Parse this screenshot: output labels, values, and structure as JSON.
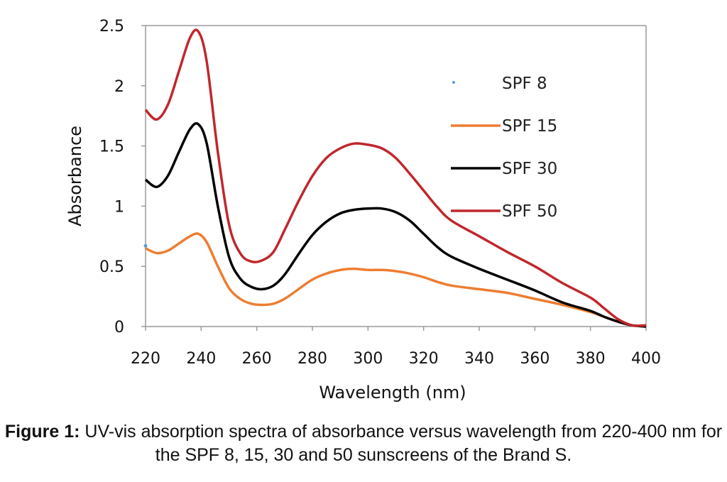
{
  "chart_data": {
    "type": "line",
    "xlabel": "Wavelength (nm)",
    "ylabel": "Absorbance",
    "xlim": [
      220,
      400
    ],
    "ylim": [
      0,
      2.5
    ],
    "x_ticks": [
      "220",
      "240",
      "260",
      "280",
      "300",
      "320",
      "340",
      "360",
      "380",
      "400"
    ],
    "y_ticks": [
      "0",
      "0.5",
      "1",
      "1.5",
      "2",
      "2.5"
    ],
    "legend_position": "top-right",
    "series": [
      {
        "name": "SPF 8",
        "color": "#5b9bd5",
        "style": "marker",
        "x": [
          220
        ],
        "y": [
          0.67
        ]
      },
      {
        "name": "SPF 15",
        "color": "#ed7d31",
        "style": "line",
        "x": [
          220,
          224,
          228,
          232,
          236,
          239,
          242,
          246,
          250,
          254,
          258,
          262,
          266,
          270,
          275,
          280,
          285,
          290,
          295,
          300,
          305,
          310,
          315,
          320,
          325,
          330,
          340,
          350,
          360,
          370,
          380,
          385,
          390,
          395,
          400
        ],
        "y": [
          0.65,
          0.61,
          0.63,
          0.69,
          0.75,
          0.77,
          0.7,
          0.5,
          0.32,
          0.23,
          0.19,
          0.18,
          0.19,
          0.23,
          0.31,
          0.39,
          0.44,
          0.47,
          0.48,
          0.47,
          0.47,
          0.46,
          0.44,
          0.41,
          0.37,
          0.34,
          0.31,
          0.28,
          0.23,
          0.18,
          0.12,
          0.08,
          0.04,
          0.01,
          0.0
        ]
      },
      {
        "name": "SPF 30",
        "color": "#000000",
        "style": "line",
        "x": [
          220,
          224,
          228,
          232,
          236,
          239,
          242,
          246,
          250,
          254,
          258,
          262,
          266,
          270,
          275,
          280,
          285,
          290,
          295,
          300,
          305,
          310,
          315,
          320,
          325,
          330,
          340,
          350,
          360,
          370,
          380,
          385,
          390,
          395,
          400
        ],
        "y": [
          1.22,
          1.16,
          1.25,
          1.45,
          1.64,
          1.68,
          1.52,
          1.0,
          0.58,
          0.4,
          0.33,
          0.31,
          0.34,
          0.43,
          0.6,
          0.76,
          0.87,
          0.94,
          0.97,
          0.98,
          0.98,
          0.95,
          0.88,
          0.77,
          0.66,
          0.58,
          0.48,
          0.39,
          0.3,
          0.2,
          0.13,
          0.08,
          0.04,
          0.01,
          0.0
        ]
      },
      {
        "name": "SPF 50",
        "color": "#c0272d",
        "style": "line",
        "x": [
          220,
          224,
          228,
          232,
          236,
          239,
          242,
          246,
          250,
          254,
          258,
          262,
          266,
          270,
          275,
          280,
          285,
          290,
          295,
          300,
          305,
          310,
          315,
          320,
          325,
          330,
          340,
          350,
          360,
          370,
          380,
          385,
          390,
          395,
          400
        ],
        "y": [
          1.8,
          1.72,
          1.84,
          2.12,
          2.4,
          2.45,
          2.2,
          1.45,
          0.85,
          0.61,
          0.54,
          0.55,
          0.62,
          0.8,
          1.04,
          1.25,
          1.4,
          1.48,
          1.52,
          1.51,
          1.48,
          1.4,
          1.27,
          1.13,
          0.99,
          0.88,
          0.75,
          0.62,
          0.5,
          0.36,
          0.24,
          0.15,
          0.06,
          0.01,
          0.01
        ]
      }
    ]
  },
  "caption": {
    "lead": "Figure 1:",
    "text": " UV-vis absorption spectra of absorbance versus wavelength from 220-400 nm for the SPF 8, 15, 30 and 50 sunscreens of the Brand S."
  }
}
